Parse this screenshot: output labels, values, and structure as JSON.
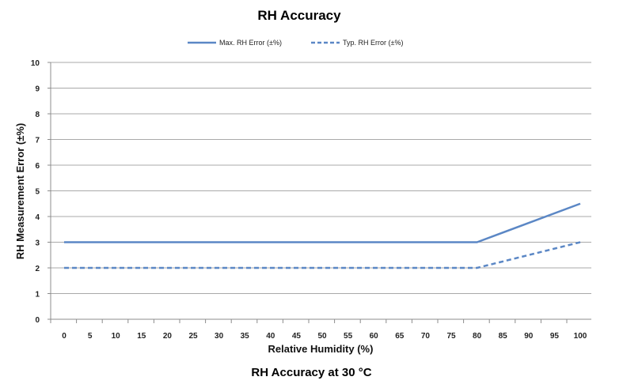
{
  "caption": "RH Accuracy at 30 °C",
  "chart_data": {
    "type": "line",
    "title": "RH Accuracy",
    "xlabel": "Relative Humidity (%)",
    "ylabel": "RH Measurement Error (±%)",
    "categories": [
      "0",
      "5",
      "10",
      "15",
      "20",
      "25",
      "30",
      "35",
      "40",
      "45",
      "50",
      "55",
      "60",
      "65",
      "70",
      "75",
      "80",
      "85",
      "90",
      "95",
      "100"
    ],
    "xlim": [
      0,
      100
    ],
    "ylim": [
      0,
      10
    ],
    "yticks": [
      "0",
      "1",
      "2",
      "3",
      "4",
      "5",
      "6",
      "7",
      "8",
      "9",
      "10"
    ],
    "grid": true,
    "legend": "top-center",
    "series": [
      {
        "name": "Max. RH Error (±%)",
        "style": "solid",
        "color": "#5b87c5",
        "x": [
          0,
          80,
          100
        ],
        "y": [
          3,
          3,
          4.5
        ]
      },
      {
        "name": "Typ. RH Error (±%)",
        "style": "dashed",
        "color": "#5b87c5",
        "x": [
          0,
          80,
          100
        ],
        "y": [
          2,
          2,
          3
        ]
      }
    ]
  }
}
